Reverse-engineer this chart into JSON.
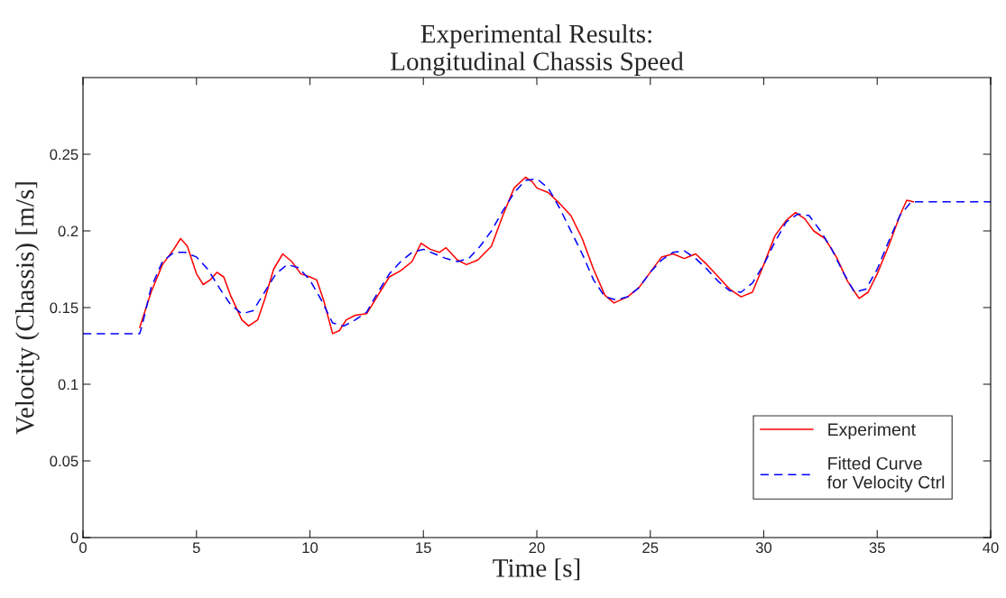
{
  "chart_data": {
    "type": "line",
    "title": "Experimental Results:\nLongitudinal Chassis Speed",
    "xlabel": "Time [s]",
    "ylabel": "Velocity (Chassis) [m/s]",
    "xlim": [
      0,
      40
    ],
    "xticks": [
      0,
      5,
      10,
      15,
      20,
      25,
      30,
      35,
      40
    ],
    "ylim": [
      0,
      0.3
    ],
    "yticks": [
      0,
      0.05,
      0.1,
      0.15,
      0.2,
      0.25
    ],
    "grid": false,
    "legend": "bottom right",
    "series": [
      {
        "name": "Experiment",
        "color": "#ff0000",
        "line_style": "solid",
        "x": [
          2.5,
          3,
          3.5,
          4,
          4.3,
          4.6,
          5,
          5.3,
          5.6,
          5.9,
          6.2,
          6.5,
          7,
          7.3,
          7.7,
          8,
          8.4,
          8.8,
          9.2,
          9.6,
          10,
          10.3,
          10.6,
          11,
          11.3,
          11.6,
          12,
          12.5,
          13,
          13.5,
          14,
          14.5,
          14.9,
          15.3,
          15.7,
          16,
          16.5,
          16.9,
          17.4,
          18,
          18.5,
          19,
          19.5,
          19.8,
          20,
          20.5,
          21,
          21.5,
          22,
          22.5,
          23,
          23.4,
          24,
          24.5,
          25,
          25.5,
          26,
          26.5,
          27,
          27.5,
          28,
          28.5,
          29,
          29.5,
          30,
          30.5,
          31,
          31.4,
          31.8,
          32.2,
          32.7,
          33.2,
          33.7,
          34.2,
          34.6,
          35,
          35.5,
          36,
          36.3,
          36.6
        ],
        "values": [
          0.137,
          0.16,
          0.178,
          0.188,
          0.195,
          0.19,
          0.172,
          0.165,
          0.168,
          0.173,
          0.17,
          0.158,
          0.142,
          0.138,
          0.142,
          0.155,
          0.175,
          0.185,
          0.18,
          0.172,
          0.17,
          0.168,
          0.155,
          0.133,
          0.135,
          0.142,
          0.145,
          0.146,
          0.158,
          0.17,
          0.174,
          0.18,
          0.192,
          0.188,
          0.186,
          0.189,
          0.181,
          0.178,
          0.181,
          0.19,
          0.21,
          0.228,
          0.235,
          0.232,
          0.228,
          0.225,
          0.218,
          0.21,
          0.195,
          0.175,
          0.158,
          0.153,
          0.157,
          0.163,
          0.173,
          0.183,
          0.185,
          0.182,
          0.185,
          0.178,
          0.17,
          0.162,
          0.157,
          0.16,
          0.178,
          0.197,
          0.207,
          0.212,
          0.208,
          0.2,
          0.195,
          0.183,
          0.167,
          0.156,
          0.16,
          0.172,
          0.19,
          0.21,
          0.22,
          0.219
        ]
      },
      {
        "name": "Fitted Curve\nfor Velocity Ctrl",
        "color": "#0000ff",
        "line_style": "dashed",
        "x": [
          0,
          2.5,
          2.6,
          3,
          3.5,
          4,
          4.5,
          5,
          5.5,
          6,
          6.5,
          7,
          7.5,
          8,
          8.5,
          9,
          9.5,
          10,
          10.5,
          11,
          11.5,
          12,
          12.5,
          13,
          13.5,
          14,
          14.5,
          15,
          15.5,
          16,
          16.5,
          17,
          17.5,
          18,
          18.5,
          19,
          19.5,
          20,
          20.5,
          21,
          21.5,
          22,
          22.5,
          23,
          23.5,
          24,
          24.5,
          25,
          25.5,
          26,
          26.5,
          27,
          27.5,
          28,
          28.5,
          29,
          29.5,
          30,
          30.5,
          31,
          31.5,
          32,
          32.5,
          33,
          33.5,
          34,
          34.5,
          35,
          35.5,
          36,
          36.5,
          40
        ],
        "values": [
          0.133,
          0.133,
          0.138,
          0.163,
          0.18,
          0.186,
          0.186,
          0.183,
          0.175,
          0.163,
          0.152,
          0.146,
          0.148,
          0.16,
          0.172,
          0.178,
          0.176,
          0.168,
          0.155,
          0.14,
          0.138,
          0.142,
          0.147,
          0.16,
          0.172,
          0.18,
          0.186,
          0.188,
          0.185,
          0.182,
          0.18,
          0.182,
          0.19,
          0.2,
          0.213,
          0.225,
          0.233,
          0.234,
          0.228,
          0.215,
          0.2,
          0.185,
          0.168,
          0.157,
          0.155,
          0.157,
          0.163,
          0.173,
          0.181,
          0.186,
          0.187,
          0.182,
          0.175,
          0.167,
          0.161,
          0.16,
          0.166,
          0.178,
          0.193,
          0.206,
          0.211,
          0.21,
          0.2,
          0.188,
          0.173,
          0.16,
          0.162,
          0.175,
          0.193,
          0.21,
          0.219,
          0.219
        ]
      }
    ]
  }
}
